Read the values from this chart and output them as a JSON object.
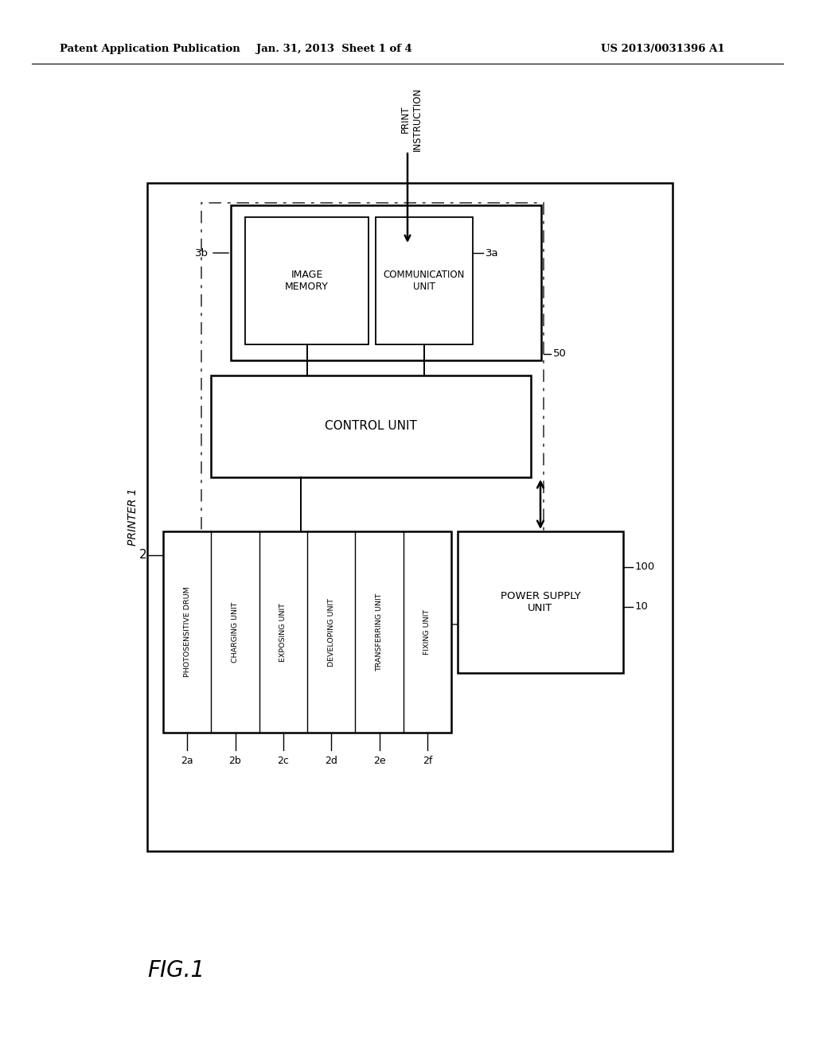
{
  "background_color": "#ffffff",
  "header_left": "Patent Application Publication",
  "header_center": "Jan. 31, 2013  Sheet 1 of 4",
  "header_right": "US 2013/0031396 A1",
  "figure_label": "FIG.1",
  "print_instruction": "PRINT\nINSTRUCTION",
  "units": {
    "image_memory": "IMAGE\nMEMORY",
    "comm_unit": "COMMUNICATION\nUNIT",
    "control_unit": "CONTROL UNIT",
    "power_supply": "POWER SUPPLY\nUNIT",
    "photosensitive": "PHOTOSENSITIVE DRUM",
    "charging": "CHARGING UNIT",
    "exposing": "EXPOSING UNIT",
    "developing": "DEVELOPING UNIT",
    "transferring": "TRANSFERRING UNIT",
    "fixing": "FIXING UNIT"
  },
  "unit_labels": [
    "2a",
    "2b",
    "2c",
    "2d",
    "2e",
    "2f"
  ],
  "labels": {
    "3b": "3b",
    "3a": "3a",
    "50": "50",
    "2": "2",
    "100": "100",
    "10": "10",
    "printer": "PRINTER 1"
  }
}
